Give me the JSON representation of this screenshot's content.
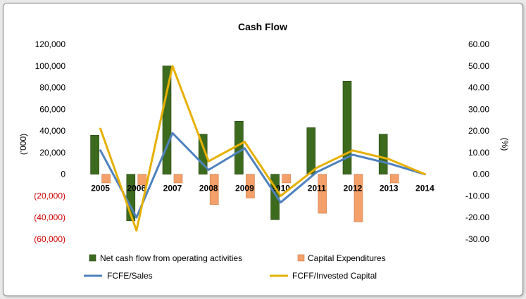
{
  "chart_data": {
    "type": "bar",
    "title": "Cash Flow",
    "categories": [
      "2005",
      "2006",
      "2007",
      "2008",
      "2009",
      "2010",
      "2011",
      "2012",
      "2013",
      "2014"
    ],
    "y_left": {
      "label": "('000)",
      "ylim": [
        -60000,
        120000
      ],
      "ticks": [
        120000,
        100000,
        80000,
        60000,
        40000,
        20000,
        0,
        -20000,
        -40000,
        -60000
      ],
      "tick_labels": [
        "120,000",
        "100,000",
        "80,000",
        "60,000",
        "40,000",
        "20,000",
        "0",
        "(20,000)",
        "(40,000)",
        "(60,000)"
      ]
    },
    "y_right": {
      "label": "(%)",
      "ylim": [
        -30,
        60
      ],
      "ticks": [
        60,
        50,
        40,
        30,
        20,
        10,
        0,
        -10,
        -20,
        -30
      ],
      "tick_labels": [
        "60.00",
        "50.00",
        "40.00",
        "30.00",
        "20.00",
        "10.00",
        "0.00",
        "-10.00",
        "-20.00",
        "-30.00"
      ]
    },
    "bar_series": [
      {
        "name": "Net cash flow from operating activities",
        "color": "#3d6b1e",
        "values": [
          36000,
          -43000,
          100000,
          37000,
          49000,
          -42000,
          43000,
          86000,
          37000,
          0
        ]
      },
      {
        "name": "Capital Expenditures",
        "color": "#f4a06a",
        "values": [
          -8000,
          -10000,
          -8000,
          -28000,
          -22000,
          -8000,
          -36000,
          -44000,
          -8000,
          0
        ]
      }
    ],
    "line_series": [
      {
        "name": "FCFE/Sales",
        "color": "#4f81bd",
        "values": [
          11,
          -20,
          19,
          2,
          12,
          -13,
          1,
          9,
          5,
          0
        ]
      },
      {
        "name": "FCFF/Invested Capital",
        "color": "#e6b000",
        "values": [
          21,
          -26,
          50,
          6,
          15,
          -10,
          3,
          11,
          7,
          0
        ]
      }
    ],
    "grid": false,
    "legend_position": "bottom"
  }
}
